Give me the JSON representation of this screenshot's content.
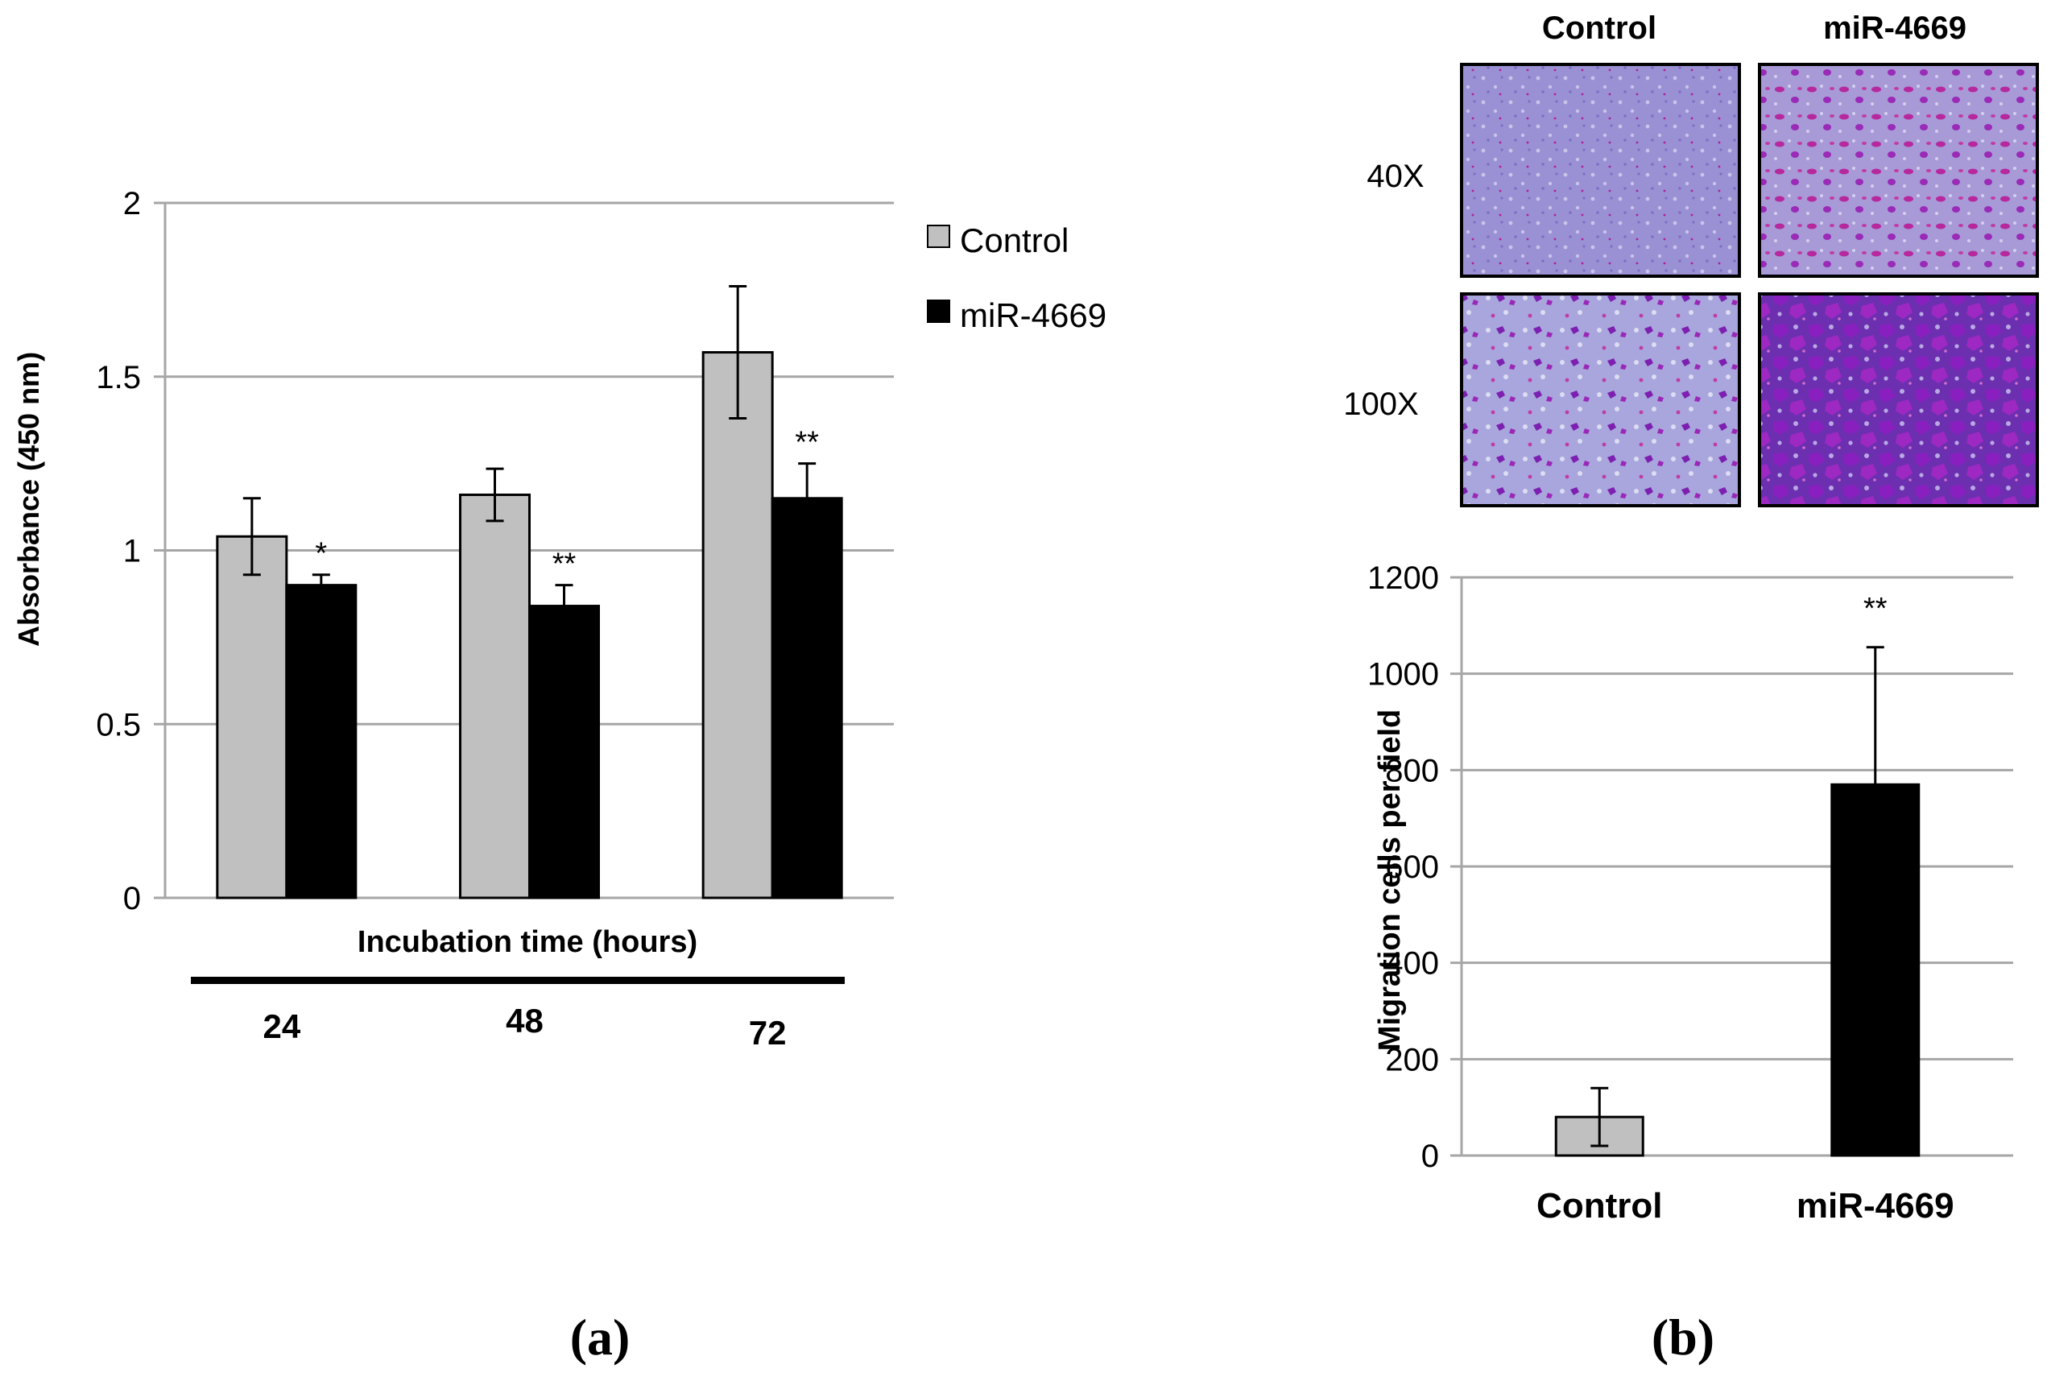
{
  "panel_a_label": "(a)",
  "panel_b_label": "(b)",
  "micrographs": {
    "columns": [
      "Control",
      "miR-4669"
    ],
    "rows": [
      "40X",
      "100X"
    ]
  },
  "colors": {
    "control": "#c0c0c0",
    "mir": "#000000",
    "grid": "#a6a6a6",
    "stain_bg": "#9b8fd6",
    "stain_cell": "#8a1fb4"
  },
  "chart_data": [
    {
      "type": "bar",
      "title": "",
      "xlabel": "Incubation time (hours)",
      "ylabel": "Absorbance (450 nm)",
      "ylim": [
        0,
        2
      ],
      "yticks": [
        0,
        0.5,
        1,
        1.5,
        2
      ],
      "ytick_labels": [
        "0",
        "0.5",
        "1",
        "1.5",
        "2"
      ],
      "grid": true,
      "legend": "right",
      "categories": [
        "24",
        "48",
        "72"
      ],
      "series": [
        {
          "name": "Control",
          "values": [
            1.04,
            1.16,
            1.57
          ],
          "errors": [
            0.11,
            0.075,
            0.19
          ]
        },
        {
          "name": "miR-4669",
          "values": [
            0.9,
            0.84,
            1.15
          ],
          "errors": [
            0.03,
            0.06,
            0.1
          ]
        }
      ],
      "annotations": [
        "*",
        "**",
        "**"
      ]
    },
    {
      "type": "bar",
      "title": "",
      "xlabel": "",
      "ylabel": "Migration cells per field",
      "ylim": [
        0,
        1200
      ],
      "yticks": [
        0,
        200,
        400,
        600,
        800,
        1000,
        1200
      ],
      "ytick_labels": [
        "0",
        "200",
        "400",
        "600",
        "800",
        "1000",
        "1200"
      ],
      "grid": true,
      "categories": [
        "Control",
        "miR-4669"
      ],
      "values": [
        80,
        770
      ],
      "errors": [
        60,
        285
      ],
      "annotations": [
        "",
        "**"
      ]
    }
  ]
}
